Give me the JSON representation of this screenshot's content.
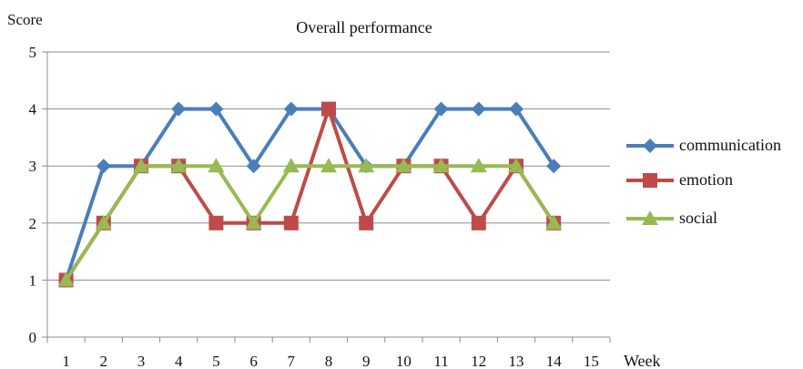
{
  "chart_data": {
    "type": "line",
    "title": "Overall performance",
    "ylabel": "Score",
    "xlabel": "Week",
    "x": [
      1,
      2,
      3,
      4,
      5,
      6,
      7,
      8,
      9,
      10,
      11,
      12,
      13,
      14
    ],
    "xticks": [
      1,
      2,
      3,
      4,
      5,
      6,
      7,
      8,
      9,
      10,
      11,
      12,
      13,
      14,
      15
    ],
    "yticks": [
      0,
      1,
      2,
      3,
      4,
      5
    ],
    "xlim": [
      1,
      15
    ],
    "ylim": [
      0,
      5
    ],
    "grid": "horizontal",
    "legend_position": "right",
    "series": [
      {
        "name": "communication",
        "color": "#4a7ebb",
        "marker": "diamond",
        "values": [
          1,
          3,
          3,
          4,
          4,
          3,
          4,
          4,
          3,
          3,
          4,
          4,
          4,
          3
        ]
      },
      {
        "name": "emotion",
        "color": "#be4b48",
        "marker": "square",
        "values": [
          1,
          2,
          3,
          3,
          2,
          2,
          2,
          4,
          2,
          3,
          3,
          2,
          3,
          2
        ]
      },
      {
        "name": "social",
        "color": "#98b954",
        "marker": "triangle",
        "values": [
          1,
          2,
          3,
          3,
          3,
          2,
          3,
          3,
          3,
          3,
          3,
          3,
          3,
          2
        ]
      }
    ]
  }
}
